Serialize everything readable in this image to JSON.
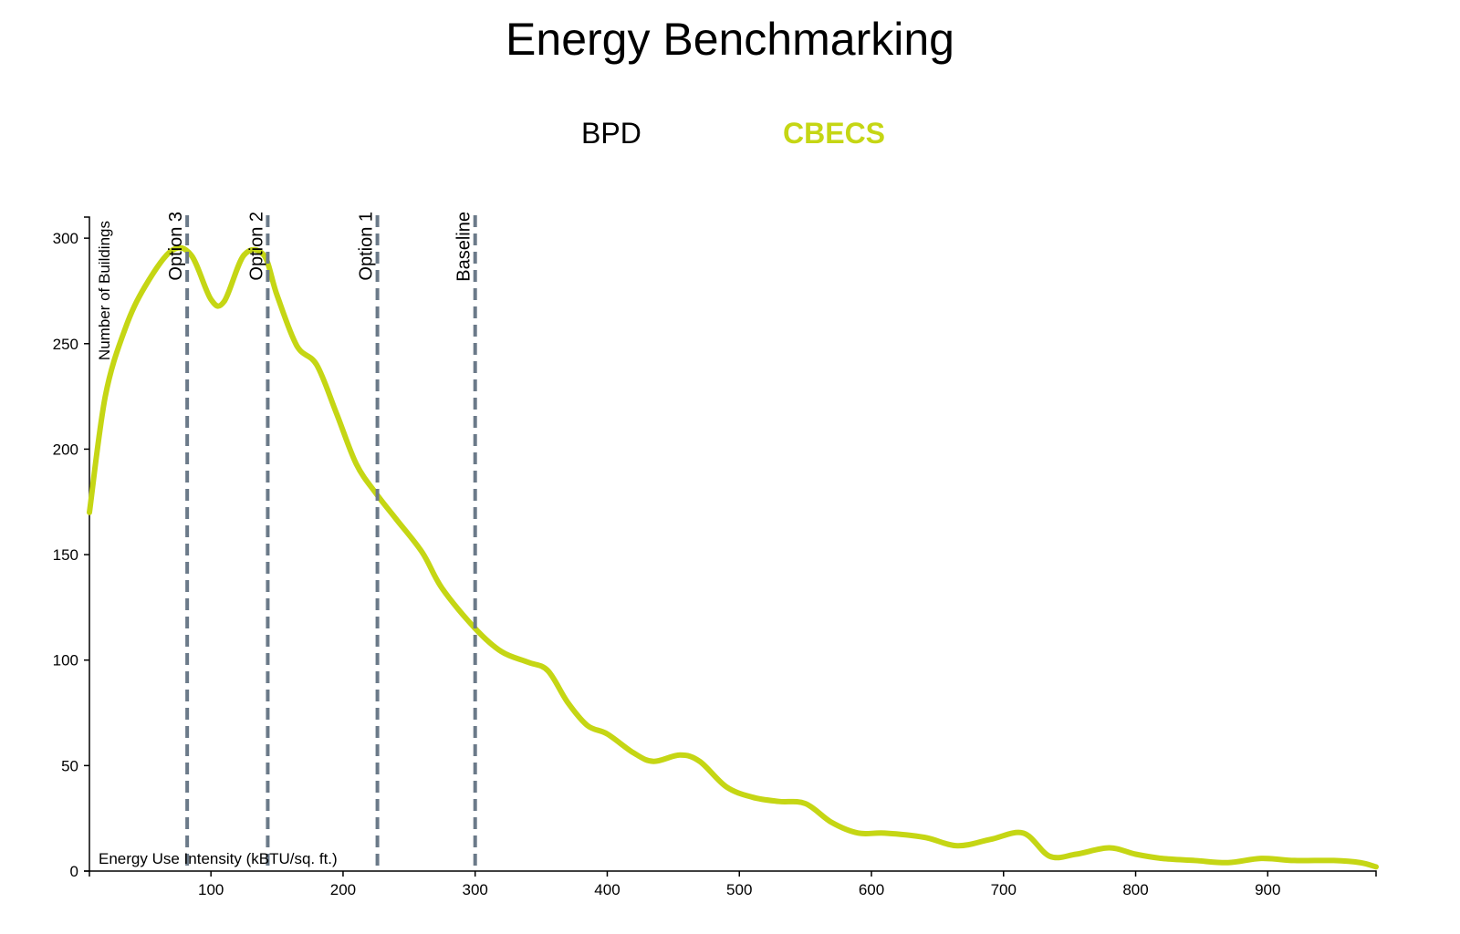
{
  "title": "Energy Benchmarking",
  "legend": {
    "bpd_label": "BPD",
    "cbecs_label": "CBECS"
  },
  "colors": {
    "series": "#c5d614",
    "marker": "#6b7a89",
    "axis": "#000000"
  },
  "chart_data": {
    "type": "line",
    "title": "Energy Benchmarking",
    "xlabel": "Energy Use Intensity (kBTU/sq. ft.)",
    "ylabel": "Number of Buildings",
    "xlim": [
      8,
      982
    ],
    "ylim": [
      0,
      310
    ],
    "x_ticks": [
      100,
      200,
      300,
      400,
      500,
      600,
      700,
      800,
      900
    ],
    "y_ticks": [
      0,
      50,
      100,
      150,
      200,
      250,
      300
    ],
    "grid": false,
    "series": [
      {
        "name": "CBECS",
        "x": [
          8,
          20,
          35,
          50,
          70,
          85,
          100,
          110,
          125,
          140,
          150,
          165,
          180,
          195,
          210,
          225,
          240,
          260,
          275,
          300,
          320,
          340,
          355,
          370,
          385,
          400,
          420,
          435,
          455,
          470,
          490,
          510,
          530,
          550,
          570,
          590,
          610,
          640,
          665,
          690,
          715,
          735,
          755,
          780,
          800,
          820,
          845,
          870,
          895,
          920,
          950,
          970,
          982
        ],
        "values": [
          170,
          225,
          257,
          277,
          294,
          292,
          271,
          270,
          292,
          292,
          273,
          249,
          240,
          217,
          193,
          179,
          167,
          151,
          134,
          115,
          104,
          99,
          95,
          80,
          69,
          65,
          56,
          52,
          55,
          52,
          40,
          35,
          33,
          32,
          23,
          18,
          18,
          16,
          12,
          15,
          18,
          7,
          8,
          11,
          8,
          6,
          5,
          4,
          6,
          5,
          5,
          4,
          2
        ]
      }
    ],
    "markers": [
      {
        "label": "Option 3",
        "x": 82
      },
      {
        "label": "Option 2",
        "x": 143
      },
      {
        "label": "Option 1",
        "x": 226
      },
      {
        "label": "Baseline",
        "x": 300
      }
    ]
  }
}
